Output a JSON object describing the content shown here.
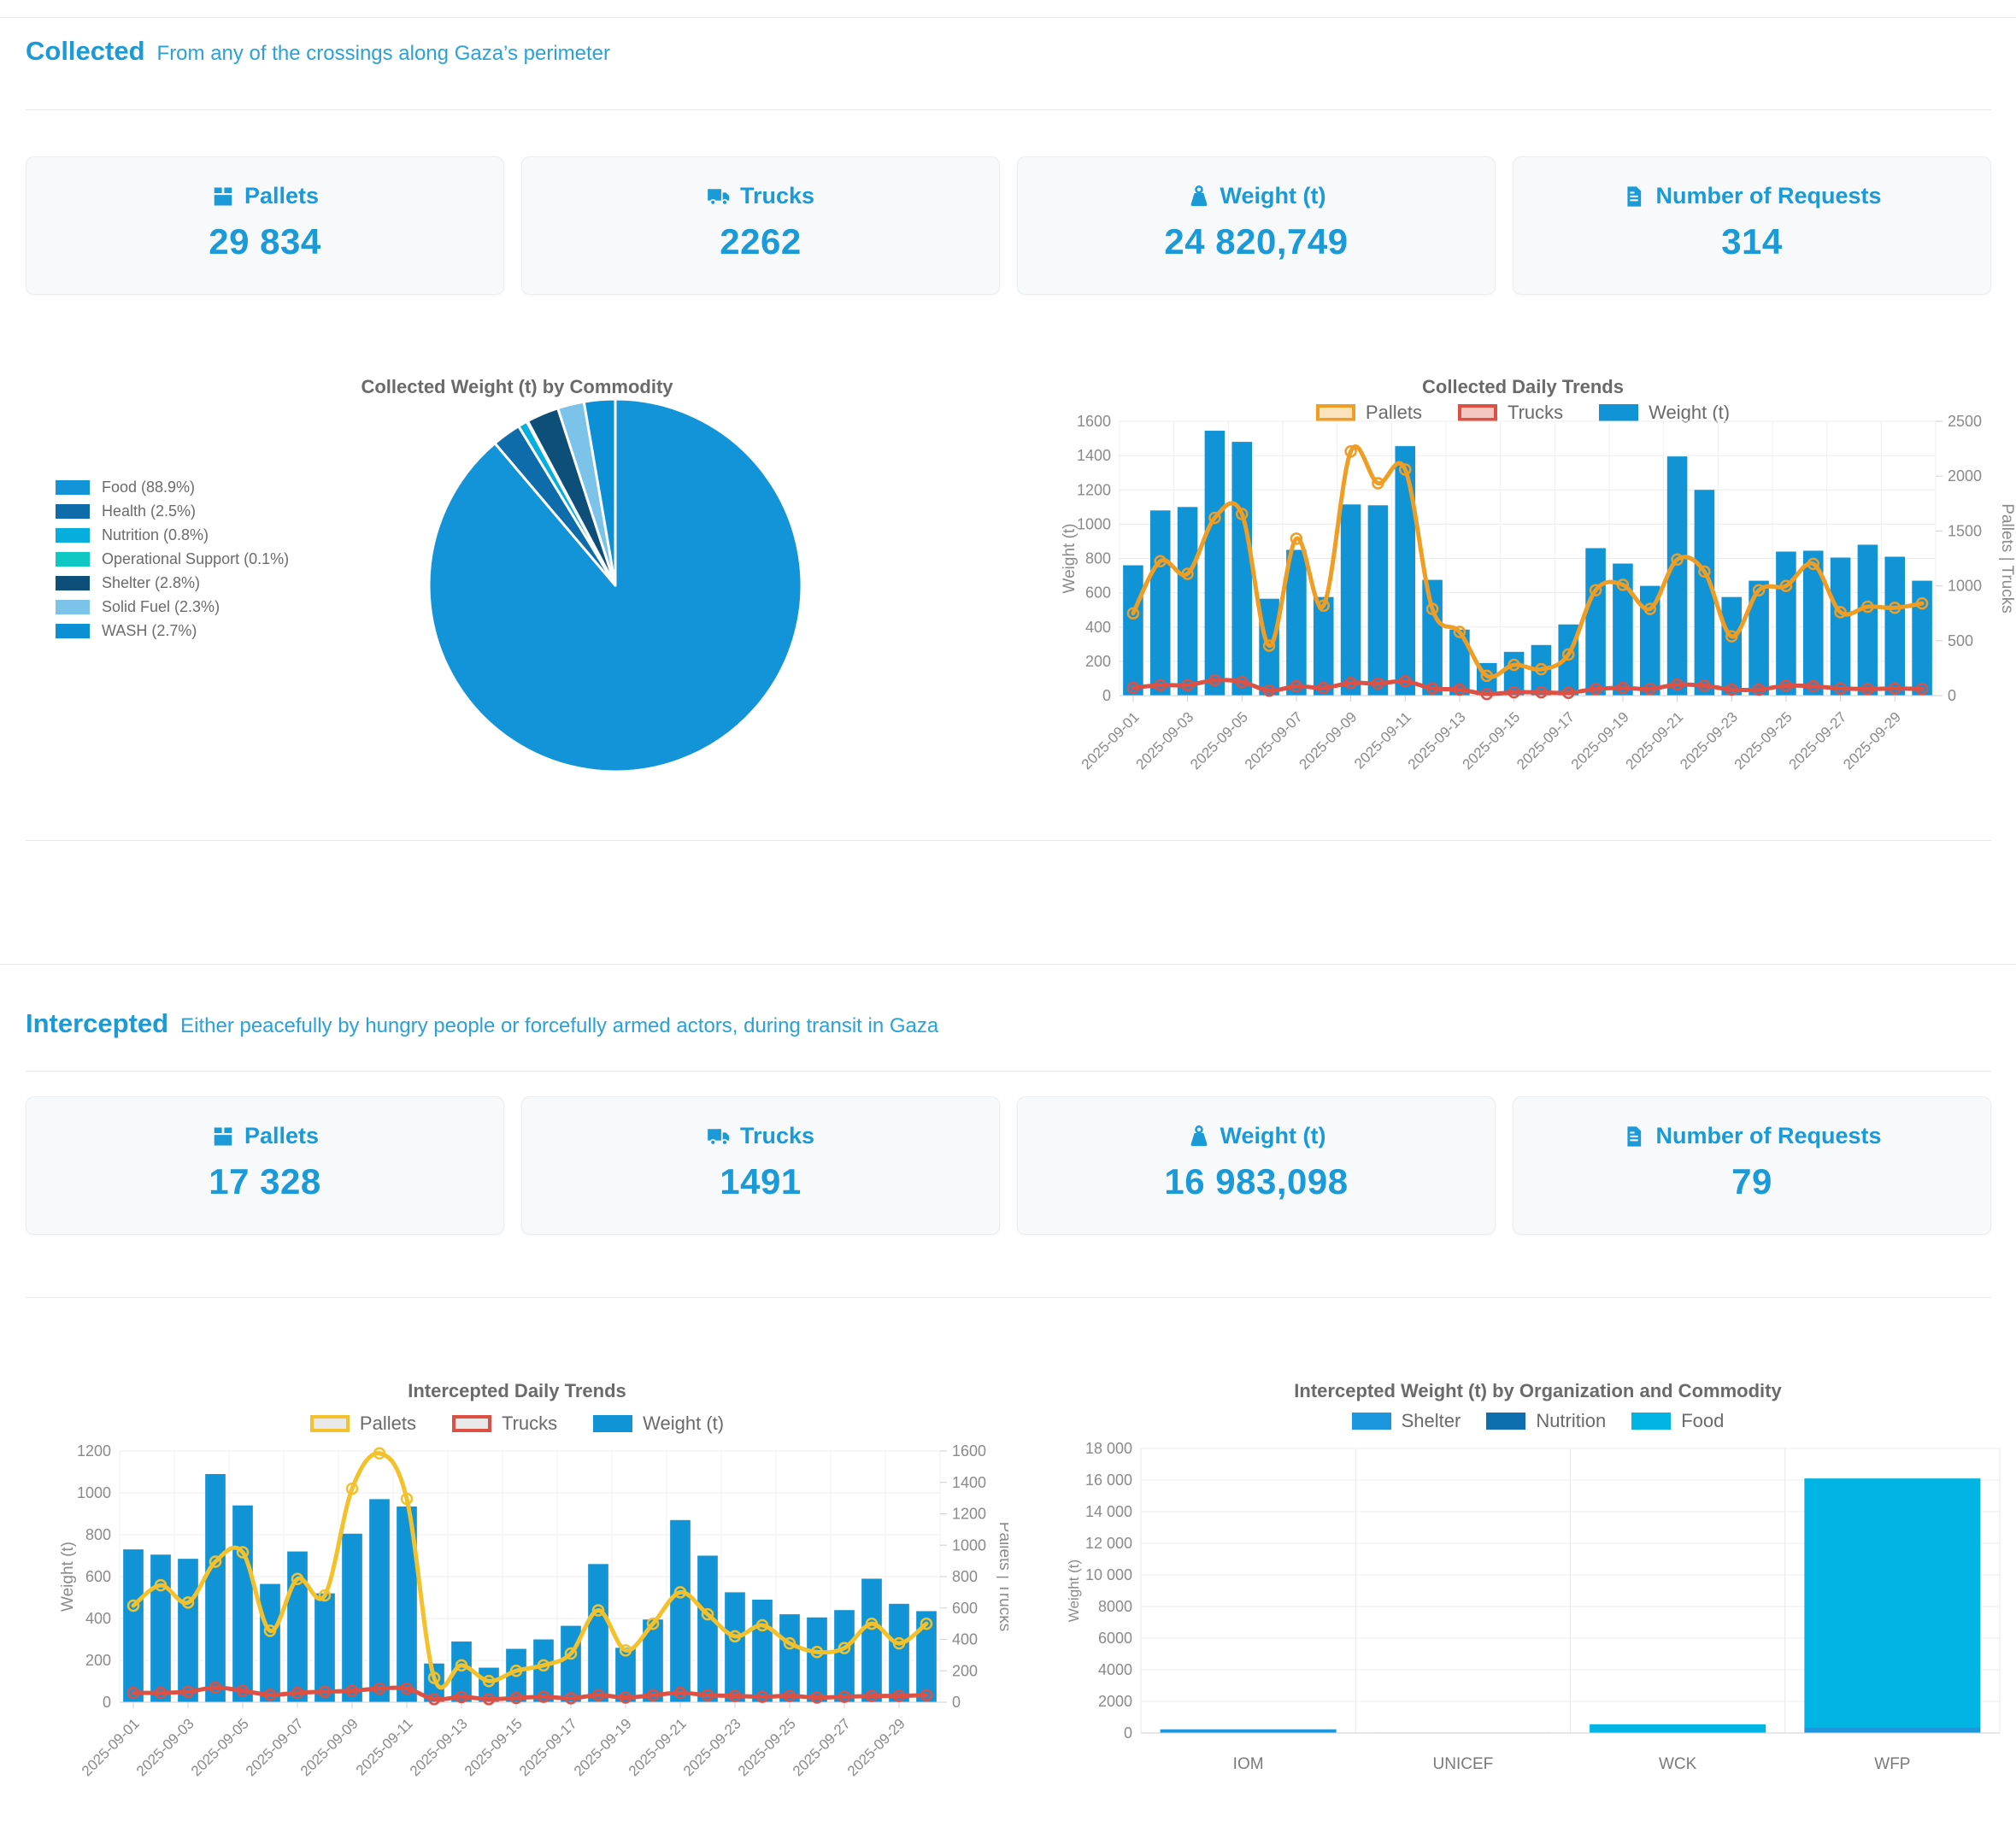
{
  "accent": "#1b9ad7",
  "collected": {
    "title": "Collected",
    "subtitle": "From any of the crossings along Gaza’s perimeter",
    "kpis": [
      {
        "label": "Pallets",
        "value": "29 834",
        "icon": "box-icon"
      },
      {
        "label": "Trucks",
        "value": "2262",
        "icon": "truck-icon"
      },
      {
        "label": "Weight (t)",
        "value": "24 820,749",
        "icon": "weight-icon"
      },
      {
        "label": "Number of Requests",
        "value": "314",
        "icon": "document-icon"
      }
    ]
  },
  "intercepted": {
    "title": "Intercepted",
    "subtitle": "Either peacefully by hungry people or forcefully armed actors, during transit in Gaza",
    "kpis": [
      {
        "label": "Pallets",
        "value": "17 328",
        "icon": "box-icon"
      },
      {
        "label": "Trucks",
        "value": "1491",
        "icon": "truck-icon"
      },
      {
        "label": "Weight (t)",
        "value": "16 983,098",
        "icon": "weight-icon"
      },
      {
        "label": "Number of Requests",
        "value": "79",
        "icon": "document-icon"
      }
    ]
  },
  "chart_data": [
    {
      "id": "collected-pie",
      "type": "pie",
      "title": "Collected Weight (t) by Commodity",
      "labels": [
        "Food (88.9%)",
        "Health (2.5%)",
        "Nutrition (0.8%)",
        "Operational Support (0.1%)",
        "Shelter (2.8%)",
        "Solid Fuel (2.3%)",
        "WASH (2.7%)"
      ],
      "values": [
        88.9,
        2.5,
        0.8,
        0.1,
        2.8,
        2.3,
        2.7
      ],
      "colors": [
        "#1494d8",
        "#0e6cab",
        "#06aede",
        "#10c8c3",
        "#0d4f79",
        "#7cc3ea",
        "#0b8fd5"
      ],
      "legend_position": "left"
    },
    {
      "id": "collected-trends",
      "type": "bar+line",
      "title": "Collected Daily Trends",
      "x": [
        "2025-09-01",
        "2025-09-02",
        "2025-09-03",
        "2025-09-04",
        "2025-09-05",
        "2025-09-06",
        "2025-09-07",
        "2025-09-08",
        "2025-09-09",
        "2025-09-10",
        "2025-09-11",
        "2025-09-12",
        "2025-09-13",
        "2025-09-14",
        "2025-09-15",
        "2025-09-16",
        "2025-09-17",
        "2025-09-18",
        "2025-09-19",
        "2025-09-20",
        "2025-09-21",
        "2025-09-22",
        "2025-09-23",
        "2025-09-24",
        "2025-09-25",
        "2025-09-26",
        "2025-09-27",
        "2025-09-28",
        "2025-09-29",
        "2025-09-30"
      ],
      "series": [
        {
          "name": "Pallets",
          "type": "line",
          "axis": "right",
          "color": "#f09d24",
          "fill": "#fbe3bd",
          "values": [
            750,
            1225,
            1110,
            1620,
            1655,
            455,
            1430,
            820,
            2225,
            1935,
            2060,
            790,
            580,
            180,
            280,
            240,
            375,
            960,
            1010,
            790,
            1240,
            1130,
            540,
            960,
            1000,
            1200,
            760,
            810,
            800,
            840
          ]
        },
        {
          "name": "Trucks",
          "type": "line",
          "axis": "right",
          "color": "#dd5145",
          "fill": "#f5c7c2",
          "values": [
            70,
            95,
            95,
            140,
            125,
            45,
            85,
            70,
            115,
            110,
            130,
            65,
            55,
            15,
            30,
            30,
            25,
            60,
            70,
            60,
            100,
            90,
            55,
            55,
            90,
            85,
            65,
            60,
            65,
            60
          ]
        },
        {
          "name": "Weight (t)",
          "type": "bar",
          "axis": "left",
          "color": "#1194d6",
          "values": [
            760,
            1080,
            1100,
            1545,
            1480,
            565,
            850,
            575,
            1115,
            1110,
            1455,
            675,
            385,
            190,
            255,
            295,
            415,
            860,
            770,
            640,
            1395,
            1200,
            575,
            670,
            840,
            845,
            805,
            880,
            810,
            670
          ]
        }
      ],
      "ylabel_left": "Weight (t)",
      "ylabel_right": "Pallets | Trucks",
      "ylim_left": [
        0,
        1600
      ],
      "ystep_left": 200,
      "ylim_right": [
        0,
        2500
      ],
      "ystep_right": 500,
      "grid": true,
      "legend_position": "top"
    },
    {
      "id": "intercepted-trends",
      "type": "bar+line",
      "title": "Intercepted Daily Trends",
      "x": [
        "2025-09-01",
        "2025-09-02",
        "2025-09-03",
        "2025-09-04",
        "2025-09-05",
        "2025-09-06",
        "2025-09-07",
        "2025-09-08",
        "2025-09-09",
        "2025-09-10",
        "2025-09-11",
        "2025-09-12",
        "2025-09-13",
        "2025-09-14",
        "2025-09-15",
        "2025-09-16",
        "2025-09-17",
        "2025-09-18",
        "2025-09-19",
        "2025-09-20",
        "2025-09-21",
        "2025-09-22",
        "2025-09-23",
        "2025-09-24",
        "2025-09-25",
        "2025-09-26",
        "2025-09-27",
        "2025-09-28",
        "2025-09-29",
        "2025-09-30"
      ],
      "series": [
        {
          "name": "Pallets",
          "type": "line",
          "axis": "right",
          "color": "#f2c12c",
          "fill": "#e9e9e9",
          "values": [
            615,
            745,
            635,
            895,
            955,
            455,
            785,
            680,
            1360,
            1585,
            1295,
            155,
            235,
            135,
            200,
            235,
            310,
            585,
            330,
            500,
            700,
            560,
            420,
            490,
            375,
            320,
            345,
            500,
            375,
            500
          ]
        },
        {
          "name": "Trucks",
          "type": "line",
          "axis": "right",
          "color": "#dd5145",
          "fill": "#e9e9e9",
          "values": [
            60,
            60,
            67,
            93,
            73,
            47,
            60,
            67,
            73,
            87,
            87,
            20,
            33,
            20,
            27,
            35,
            25,
            45,
            30,
            45,
            60,
            45,
            40,
            35,
            40,
            30,
            35,
            40,
            40,
            45
          ]
        },
        {
          "name": "Weight (t)",
          "type": "bar",
          "axis": "left",
          "color": "#1194d6",
          "values": [
            730,
            705,
            685,
            1090,
            940,
            565,
            720,
            520,
            805,
            970,
            935,
            185,
            290,
            165,
            255,
            300,
            365,
            660,
            260,
            395,
            870,
            700,
            525,
            490,
            420,
            405,
            440,
            590,
            470,
            435
          ]
        }
      ],
      "ylabel_left": "Weight (t)",
      "ylabel_right": "Pallets | Trucks",
      "ylim_left": [
        0,
        1200
      ],
      "ystep_left": 200,
      "ylim_right": [
        0,
        1600
      ],
      "ystep_right": 200,
      "grid": true,
      "legend_position": "top"
    },
    {
      "id": "intercepted-org",
      "type": "stacked-bar",
      "title": "Intercepted Weight (t) by Organization and Commodity",
      "categories": [
        "IOM",
        "UNICEF",
        "WCK",
        "WFP"
      ],
      "series": [
        {
          "name": "Shelter",
          "color": "#1c97dd",
          "values": [
            230,
            0,
            0,
            350
          ]
        },
        {
          "name": "Nutrition",
          "color": "#0f6fae",
          "values": [
            0,
            30,
            0,
            0
          ]
        },
        {
          "name": "Food",
          "color": "#00b5e3",
          "values": [
            0,
            0,
            550,
            15750
          ]
        }
      ],
      "ylabel": "Weight (t)",
      "ylim": [
        0,
        18000
      ],
      "ystep": 2000,
      "grid": true,
      "legend_position": "top"
    }
  ]
}
